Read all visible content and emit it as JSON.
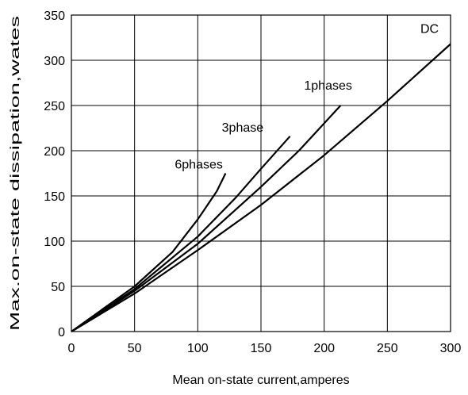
{
  "chart_data": {
    "type": "line",
    "title": "",
    "xlabel": "Mean on-state current,amperes",
    "ylabel": "Max.on-state dissipation,wates",
    "xlim": [
      0,
      300
    ],
    "ylim": [
      0,
      350
    ],
    "xticks": [
      0,
      50,
      100,
      150,
      200,
      250,
      300
    ],
    "yticks": [
      0,
      50,
      100,
      150,
      200,
      250,
      300,
      350
    ],
    "grid": true,
    "legend": "none",
    "line_color": "#000000",
    "series": [
      {
        "name": "DC",
        "points": [
          [
            0,
            0
          ],
          [
            50,
            42
          ],
          [
            100,
            90
          ],
          [
            150,
            140
          ],
          [
            200,
            195
          ],
          [
            250,
            255
          ],
          [
            300,
            318
          ]
        ]
      },
      {
        "name": "1phases",
        "points": [
          [
            0,
            0
          ],
          [
            50,
            45
          ],
          [
            100,
            97
          ],
          [
            150,
            160
          ],
          [
            180,
            200
          ],
          [
            213,
            250
          ]
        ]
      },
      {
        "name": "3phase",
        "points": [
          [
            0,
            0
          ],
          [
            50,
            47
          ],
          [
            100,
            105
          ],
          [
            130,
            148
          ],
          [
            150,
            180
          ],
          [
            173,
            216
          ]
        ]
      },
      {
        "name": "6phases",
        "points": [
          [
            0,
            0
          ],
          [
            50,
            50
          ],
          [
            80,
            88
          ],
          [
            100,
            124
          ],
          [
            115,
            155
          ],
          [
            122,
            175
          ]
        ]
      }
    ]
  }
}
